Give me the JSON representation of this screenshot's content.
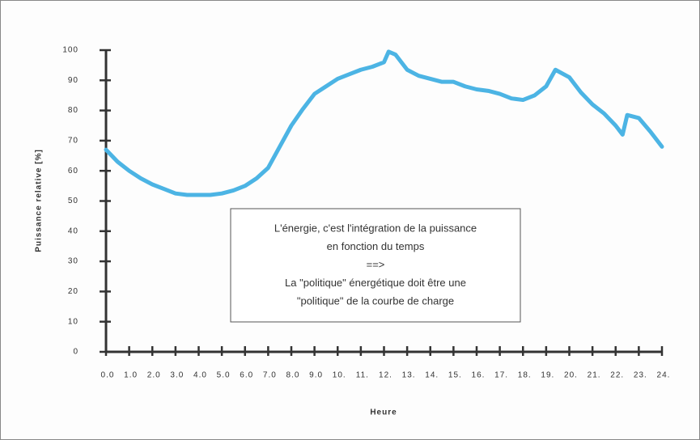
{
  "chart_data": {
    "type": "line",
    "ylabel": "Puissance relative [%]",
    "xlabel": "Heure",
    "annotation": [
      "L'énergie, c'est l'intégration de la puissance",
      "en fonction du temps",
      "==>",
      "La \"politique\" énergétique doit être une",
      "\"politique\" de la courbe de charge"
    ],
    "x": [
      0,
      0.5,
      1,
      1.5,
      2,
      2.5,
      3,
      3.5,
      4,
      4.5,
      5,
      5.5,
      6,
      6.5,
      7,
      7.5,
      8,
      8.5,
      9,
      9.5,
      10,
      10.5,
      11,
      11.5,
      12,
      12.2,
      12.5,
      13,
      13.5,
      14,
      14.5,
      15,
      15.5,
      16,
      16.5,
      17,
      17.5,
      18,
      18.5,
      19,
      19.4,
      20,
      20.5,
      21,
      21.5,
      22,
      22.3,
      22.5,
      23,
      23.5,
      24
    ],
    "values": [
      67,
      63,
      60,
      57.5,
      55.5,
      54,
      52.5,
      52,
      52,
      52,
      52.5,
      53.5,
      55,
      57.5,
      61,
      68,
      75,
      80.5,
      85.5,
      88,
      90.5,
      92,
      93.5,
      94.5,
      96,
      99.5,
      98.5,
      93.5,
      91.5,
      90.5,
      89.5,
      89.5,
      88,
      87,
      86.5,
      85.5,
      84,
      83.5,
      85,
      88,
      93.5,
      91,
      86,
      82,
      79,
      75,
      72,
      78.5,
      77.5,
      73,
      68
    ],
    "color": "#4cb4e4",
    "xlim": [
      0,
      24
    ],
    "ylim": [
      0,
      100
    ],
    "xticks": [
      {
        "value": 0,
        "label": "0.0"
      },
      {
        "value": 1,
        "label": "1.0"
      },
      {
        "value": 2,
        "label": "2.0"
      },
      {
        "value": 3,
        "label": "3.0"
      },
      {
        "value": 4,
        "label": "4.0"
      },
      {
        "value": 5,
        "label": "5.0"
      },
      {
        "value": 6,
        "label": "6.0"
      },
      {
        "value": 7,
        "label": "7.0"
      },
      {
        "value": 8,
        "label": "8.0"
      },
      {
        "value": 9,
        "label": "9.0"
      },
      {
        "value": 10,
        "label": "10."
      },
      {
        "value": 11,
        "label": "11."
      },
      {
        "value": 12,
        "label": "12."
      },
      {
        "value": 13,
        "label": "13."
      },
      {
        "value": 14,
        "label": "14."
      },
      {
        "value": 15,
        "label": "15."
      },
      {
        "value": 16,
        "label": "16."
      },
      {
        "value": 17,
        "label": "17."
      },
      {
        "value": 18,
        "label": "18."
      },
      {
        "value": 19,
        "label": "19."
      },
      {
        "value": 20,
        "label": "20."
      },
      {
        "value": 21,
        "label": "21."
      },
      {
        "value": 22,
        "label": "22."
      },
      {
        "value": 23,
        "label": "23."
      },
      {
        "value": 24,
        "label": "24."
      }
    ],
    "yticks": [
      0,
      10,
      20,
      30,
      40,
      50,
      60,
      70,
      80,
      90,
      100
    ],
    "grid": false
  }
}
